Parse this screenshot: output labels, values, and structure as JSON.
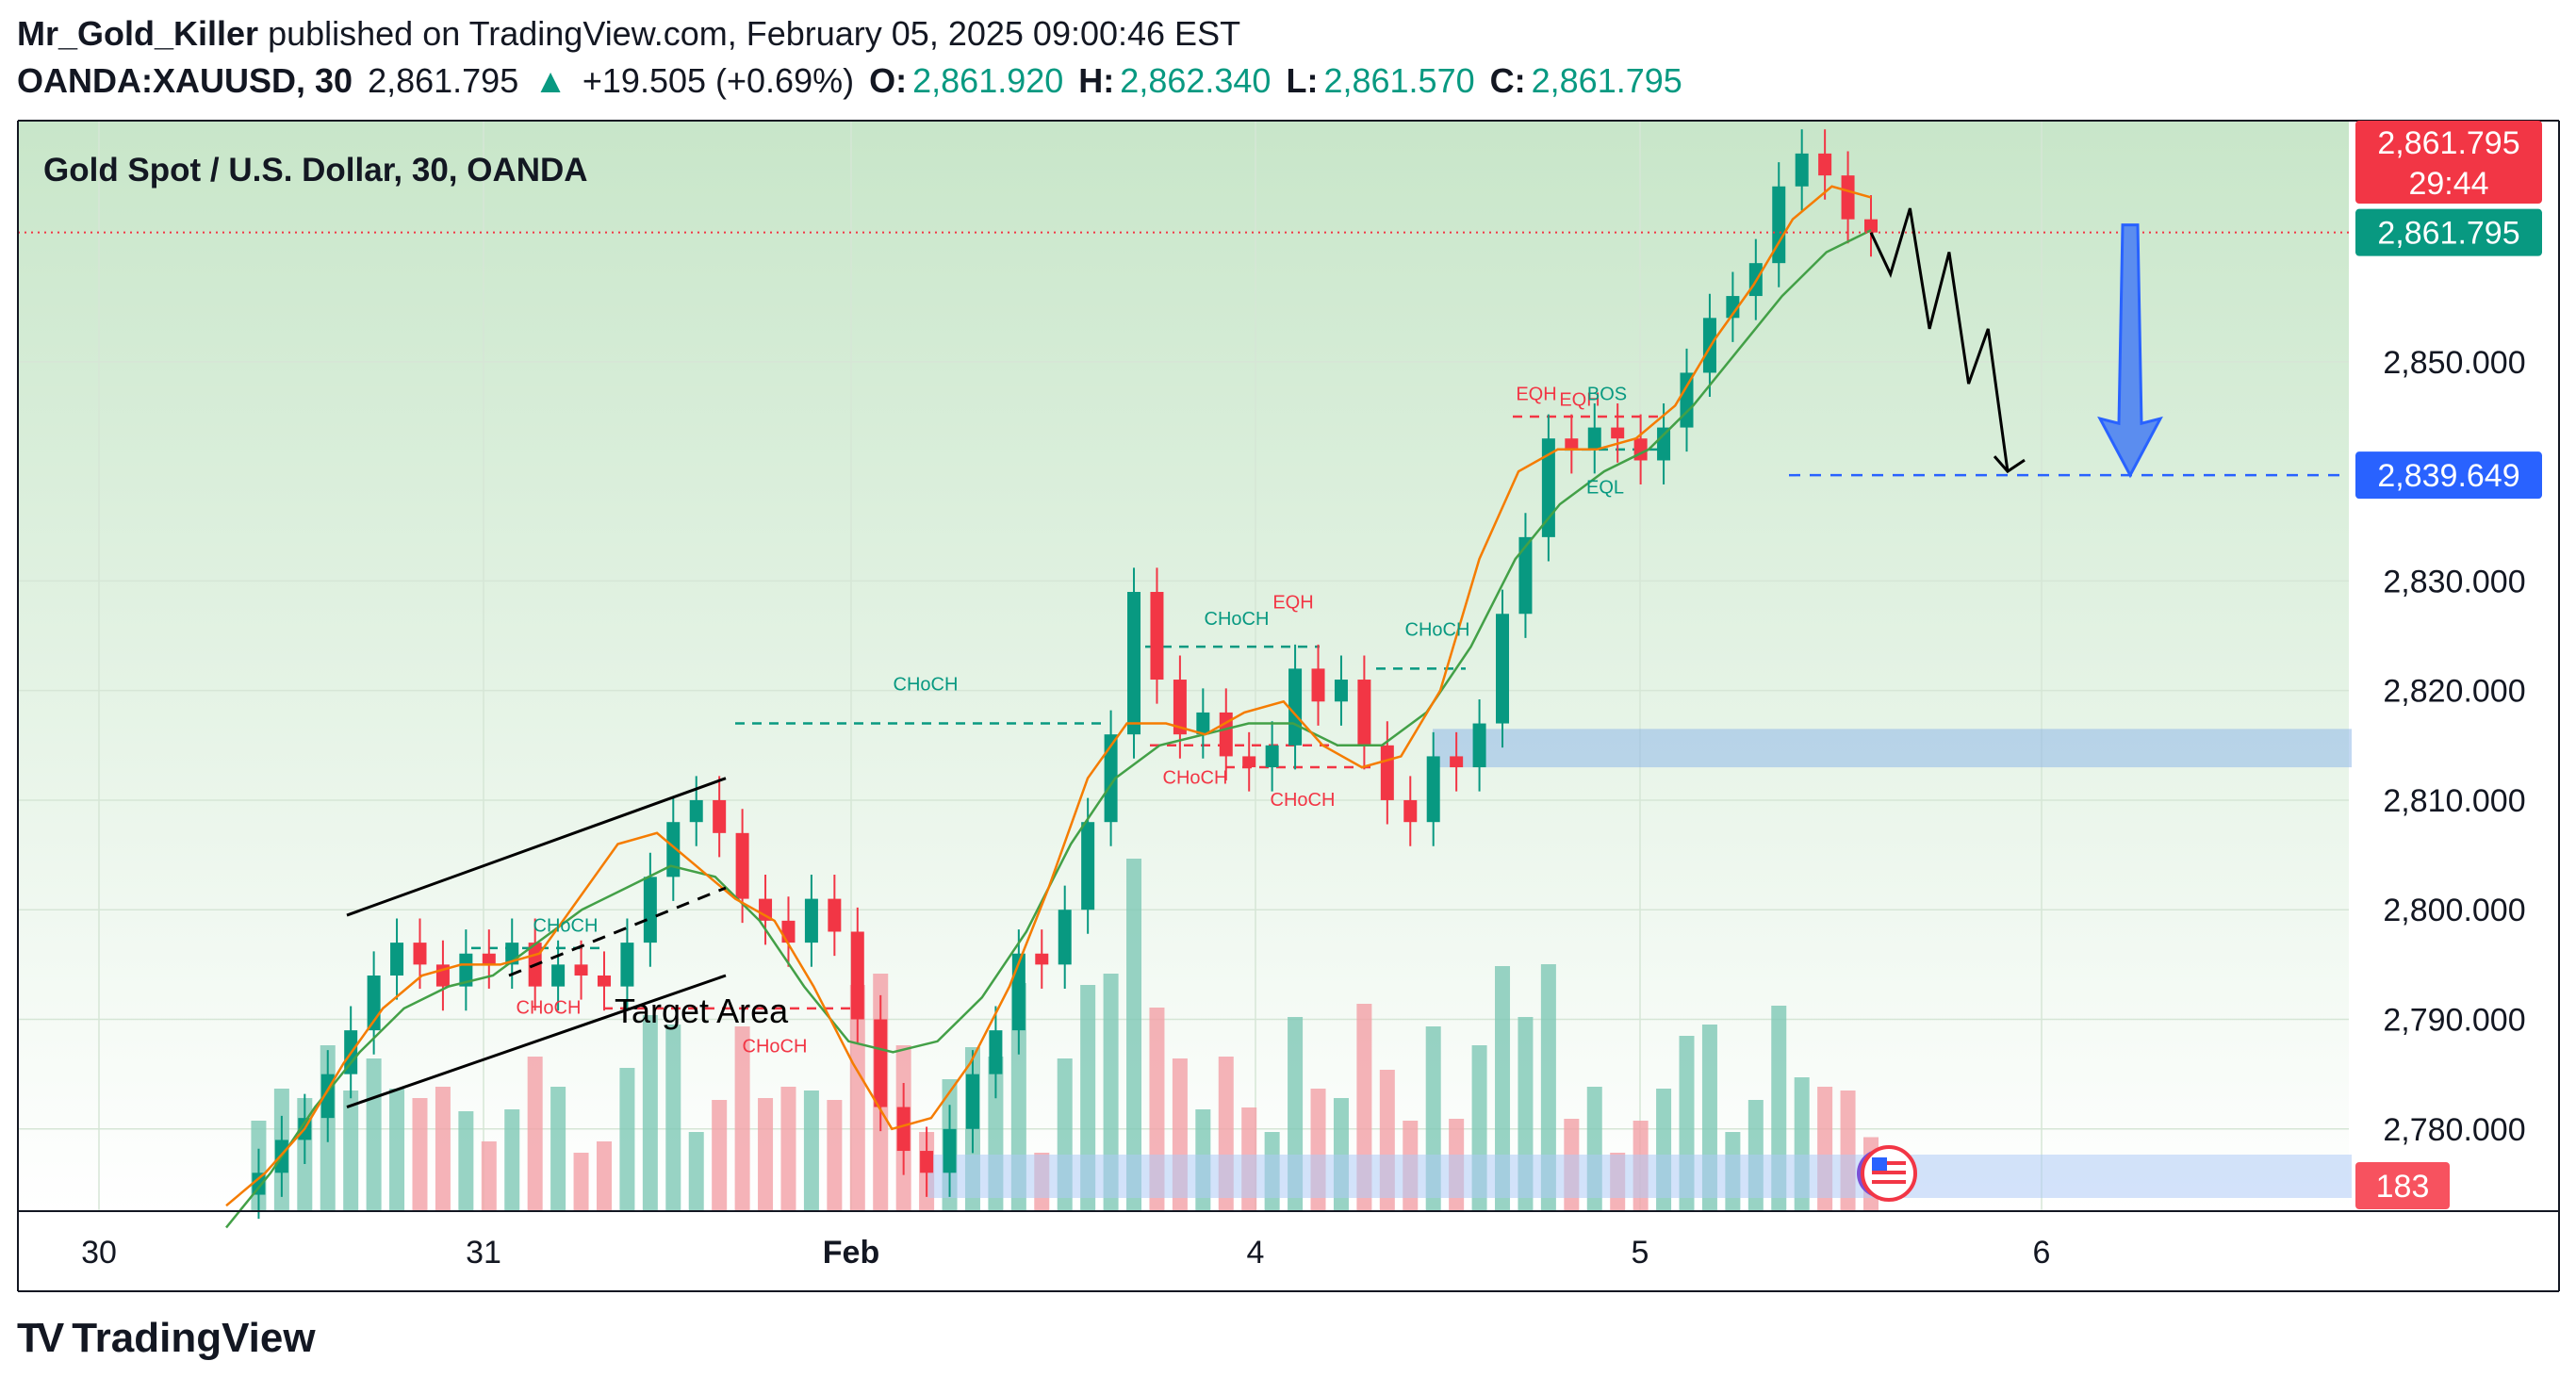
{
  "header": {
    "author": "Mr_Gold_Killer",
    "published": "published on TradingView.com, February 05, 2025 09:00:46 EST",
    "symbol": "OANDA:XAUUSD, 30",
    "last": "2,861.795",
    "change_arrow": "▲",
    "change": "+19.505 (+0.69%)",
    "o_label": "O:",
    "o_value": "2,861.920",
    "h_label": "H:",
    "h_value": "2,862.340",
    "l_label": "L:",
    "l_value": "2,861.570",
    "c_label": "C:",
    "c_value": "2,861.795"
  },
  "legend": "Gold Spot / U.S. Dollar, 30, OANDA",
  "price_tags": {
    "last_price": "2,861.795",
    "countdown": "29:44",
    "close_tag": "2,861.795",
    "target": "2,839.649",
    "volume": "183"
  },
  "annotations": {
    "target_area": "Target Area",
    "choch": "CHoCH",
    "eqh": "EQH",
    "eql": "EQL",
    "bos": "BOS"
  },
  "brand": {
    "name": "TradingView",
    "logo": "TV"
  },
  "colors": {
    "up": "#089981",
    "down": "#f23645",
    "ema_fast": "#f57c00",
    "ema_slow": "#43a047",
    "target_blue": "#2962ff",
    "zone_blue": "#90b8e8",
    "bg_green": "#c8e6c9"
  },
  "chart_data": {
    "type": "candlestick",
    "title": "Gold Spot / U.S. Dollar, 30, OANDA",
    "x_ticks": [
      "30",
      "31",
      "Feb",
      "4",
      "5",
      "6"
    ],
    "y_ticks": [
      "2,780.000",
      "2,790.000",
      "2,800.000",
      "2,810.000",
      "2,820.000",
      "2,830.000",
      "2,850.000"
    ],
    "y_tick_values": [
      2780,
      2790,
      2800,
      2810,
      2820,
      2830,
      2850
    ],
    "ylim": [
      2772.5,
      2872
    ],
    "close_path": [
      [
        "30",
        2774
      ],
      [
        "30",
        2776
      ],
      [
        "30",
        2779
      ],
      [
        "30",
        2781
      ],
      [
        "31",
        2785
      ],
      [
        "31",
        2789
      ],
      [
        "31",
        2794
      ],
      [
        "31",
        2797
      ],
      [
        "31",
        2795
      ],
      [
        "31",
        2793
      ],
      [
        "31",
        2796
      ],
      [
        "31",
        2795
      ],
      [
        "31",
        2797
      ],
      [
        "31",
        2793
      ],
      [
        "31",
        2795
      ],
      [
        "31",
        2794
      ],
      [
        "31",
        2793
      ],
      [
        "31",
        2797
      ],
      [
        "31",
        2803
      ],
      [
        "31",
        2808
      ],
      [
        "31",
        2810
      ],
      [
        "31",
        2807
      ],
      [
        "31",
        2801
      ],
      [
        "Feb",
        2799
      ],
      [
        "Feb",
        2797
      ],
      [
        "Feb",
        2801
      ],
      [
        "Feb",
        2798
      ],
      [
        "Feb",
        2790
      ],
      [
        "Feb",
        2782
      ],
      [
        "Feb",
        2778
      ],
      [
        "Feb",
        2776
      ],
      [
        "Feb",
        2780
      ],
      [
        "Feb",
        2785
      ],
      [
        "Feb",
        2789
      ],
      [
        "Feb",
        2796
      ],
      [
        "Feb",
        2795
      ],
      [
        "Feb",
        2800
      ],
      [
        "Feb",
        2808
      ],
      [
        "Feb",
        2816
      ],
      [
        "Feb",
        2829
      ],
      [
        "4",
        2821
      ],
      [
        "4",
        2816
      ],
      [
        "4",
        2818
      ],
      [
        "4",
        2814
      ],
      [
        "4",
        2813
      ],
      [
        "4",
        2815
      ],
      [
        "4",
        2822
      ],
      [
        "4",
        2819
      ],
      [
        "4",
        2821
      ],
      [
        "4",
        2815
      ],
      [
        "4",
        2810
      ],
      [
        "4",
        2808
      ],
      [
        "4",
        2814
      ],
      [
        "4",
        2813
      ],
      [
        "4",
        2817
      ],
      [
        "4",
        2827
      ],
      [
        "4",
        2834
      ],
      [
        "5",
        2843
      ],
      [
        "5",
        2842
      ],
      [
        "5",
        2844
      ],
      [
        "5",
        2843
      ],
      [
        "5",
        2841
      ],
      [
        "5",
        2844
      ],
      [
        "5",
        2849
      ],
      [
        "5",
        2854
      ],
      [
        "5",
        2856
      ],
      [
        "5",
        2859
      ],
      [
        "5",
        2866
      ],
      [
        "5",
        2869
      ],
      [
        "5",
        2867
      ],
      [
        "5",
        2863
      ],
      [
        "5",
        2861.795
      ]
    ],
    "ema_fast_path": [
      [
        "30",
        2773
      ],
      [
        "30",
        2776
      ],
      [
        "31",
        2780
      ],
      [
        "31",
        2786
      ],
      [
        "31",
        2791
      ],
      [
        "31",
        2794
      ],
      [
        "31",
        2795
      ],
      [
        "31",
        2795
      ],
      [
        "31",
        2796
      ],
      [
        "31",
        2801
      ],
      [
        "31",
        2806
      ],
      [
        "31",
        2807
      ],
      [
        "Feb",
        2804
      ],
      [
        "Feb",
        2801
      ],
      [
        "Feb",
        2799
      ],
      [
        "Feb",
        2793
      ],
      [
        "Feb",
        2786
      ],
      [
        "Feb",
        2780
      ],
      [
        "Feb",
        2781
      ],
      [
        "Feb",
        2786
      ],
      [
        "Feb",
        2793
      ],
      [
        "Feb",
        2802
      ],
      [
        "Feb",
        2812
      ],
      [
        "4",
        2817
      ],
      [
        "4",
        2817
      ],
      [
        "4",
        2816
      ],
      [
        "4",
        2818
      ],
      [
        "4",
        2819
      ],
      [
        "4",
        2815
      ],
      [
        "4",
        2813
      ],
      [
        "4",
        2814
      ],
      [
        "4",
        2820
      ],
      [
        "4",
        2832
      ],
      [
        "5",
        2840
      ],
      [
        "5",
        2842
      ],
      [
        "5",
        2842
      ],
      [
        "5",
        2843
      ],
      [
        "5",
        2846
      ],
      [
        "5",
        2852
      ],
      [
        "5",
        2857
      ],
      [
        "5",
        2863
      ],
      [
        "5",
        2866
      ],
      [
        "5",
        2865
      ]
    ],
    "ema_slow_path": [
      [
        "30",
        2771
      ],
      [
        "31",
        2776
      ],
      [
        "31",
        2782
      ],
      [
        "31",
        2787
      ],
      [
        "31",
        2791
      ],
      [
        "31",
        2793
      ],
      [
        "31",
        2794
      ],
      [
        "31",
        2797
      ],
      [
        "31",
        2800
      ],
      [
        "31",
        2802
      ],
      [
        "Feb",
        2804
      ],
      [
        "Feb",
        2803
      ],
      [
        "Feb",
        2799
      ],
      [
        "Feb",
        2793
      ],
      [
        "Feb",
        2788
      ],
      [
        "Feb",
        2787
      ],
      [
        "Feb",
        2788
      ],
      [
        "Feb",
        2792
      ],
      [
        "Feb",
        2798
      ],
      [
        "Feb",
        2806
      ],
      [
        "4",
        2812
      ],
      [
        "4",
        2815
      ],
      [
        "4",
        2816
      ],
      [
        "4",
        2817
      ],
      [
        "4",
        2817
      ],
      [
        "4",
        2815
      ],
      [
        "4",
        2815
      ],
      [
        "4",
        2818
      ],
      [
        "4",
        2824
      ],
      [
        "5",
        2832
      ],
      [
        "5",
        2837
      ],
      [
        "5",
        2840
      ],
      [
        "5",
        2842
      ],
      [
        "5",
        2846
      ],
      [
        "5",
        2851
      ],
      [
        "5",
        2856
      ],
      [
        "5",
        2860
      ],
      [
        "5",
        2862
      ]
    ],
    "projection_path": [
      2861.795,
      2858,
      2864,
      2853,
      2860,
      2848,
      2853,
      2840
    ],
    "levels": {
      "last_close": 2861.795,
      "target": 2839.649,
      "demand_zone": [
        2813,
        2816.5
      ],
      "choch_level": 2817,
      "eqh_level": 2845,
      "eql_level": 2842
    },
    "last_volume": 183,
    "grid": true,
    "legend_position": "top-left"
  }
}
